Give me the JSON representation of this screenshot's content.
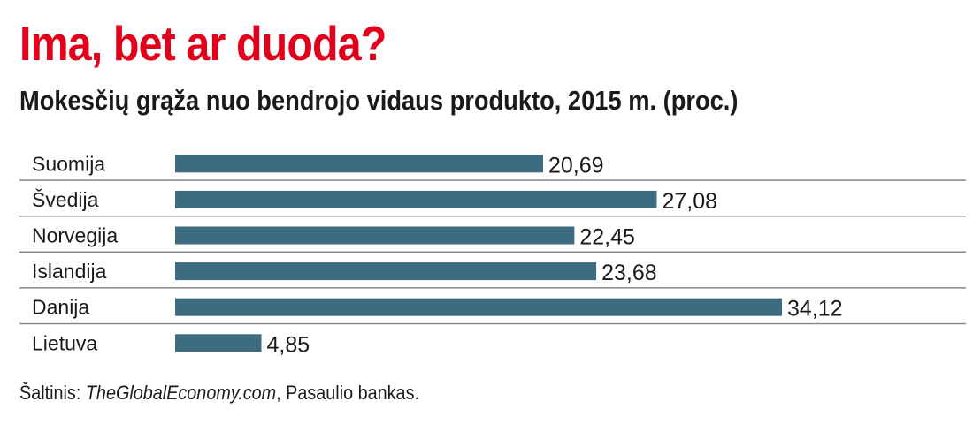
{
  "title": "Ima, bet ar duoda?",
  "subtitle": "Mokesčių grąža nuo bendrojo vidaus produkto, 2015 m. (proc.)",
  "source": {
    "prefix": "Šaltinis: ",
    "site": "TheGlobalEconomy.com",
    "suffix": ", Pasaulio bankas."
  },
  "colors": {
    "title": "#e3001b",
    "bar": "#3d6b80",
    "text": "#1a1a1a",
    "rule": "#8a8a8a"
  },
  "chart_data": {
    "type": "bar",
    "orientation": "horizontal",
    "categories": [
      "Suomija",
      "Švedija",
      "Norvegija",
      "Islandija",
      "Danija",
      "Lietuva"
    ],
    "values": [
      20.69,
      27.08,
      22.45,
      23.68,
      34.12,
      4.85
    ],
    "value_labels": [
      "20,69",
      "27,08",
      "22,45",
      "23,68",
      "34,12",
      "4,85"
    ],
    "xlim": [
      0,
      34.12
    ],
    "grid": false
  }
}
